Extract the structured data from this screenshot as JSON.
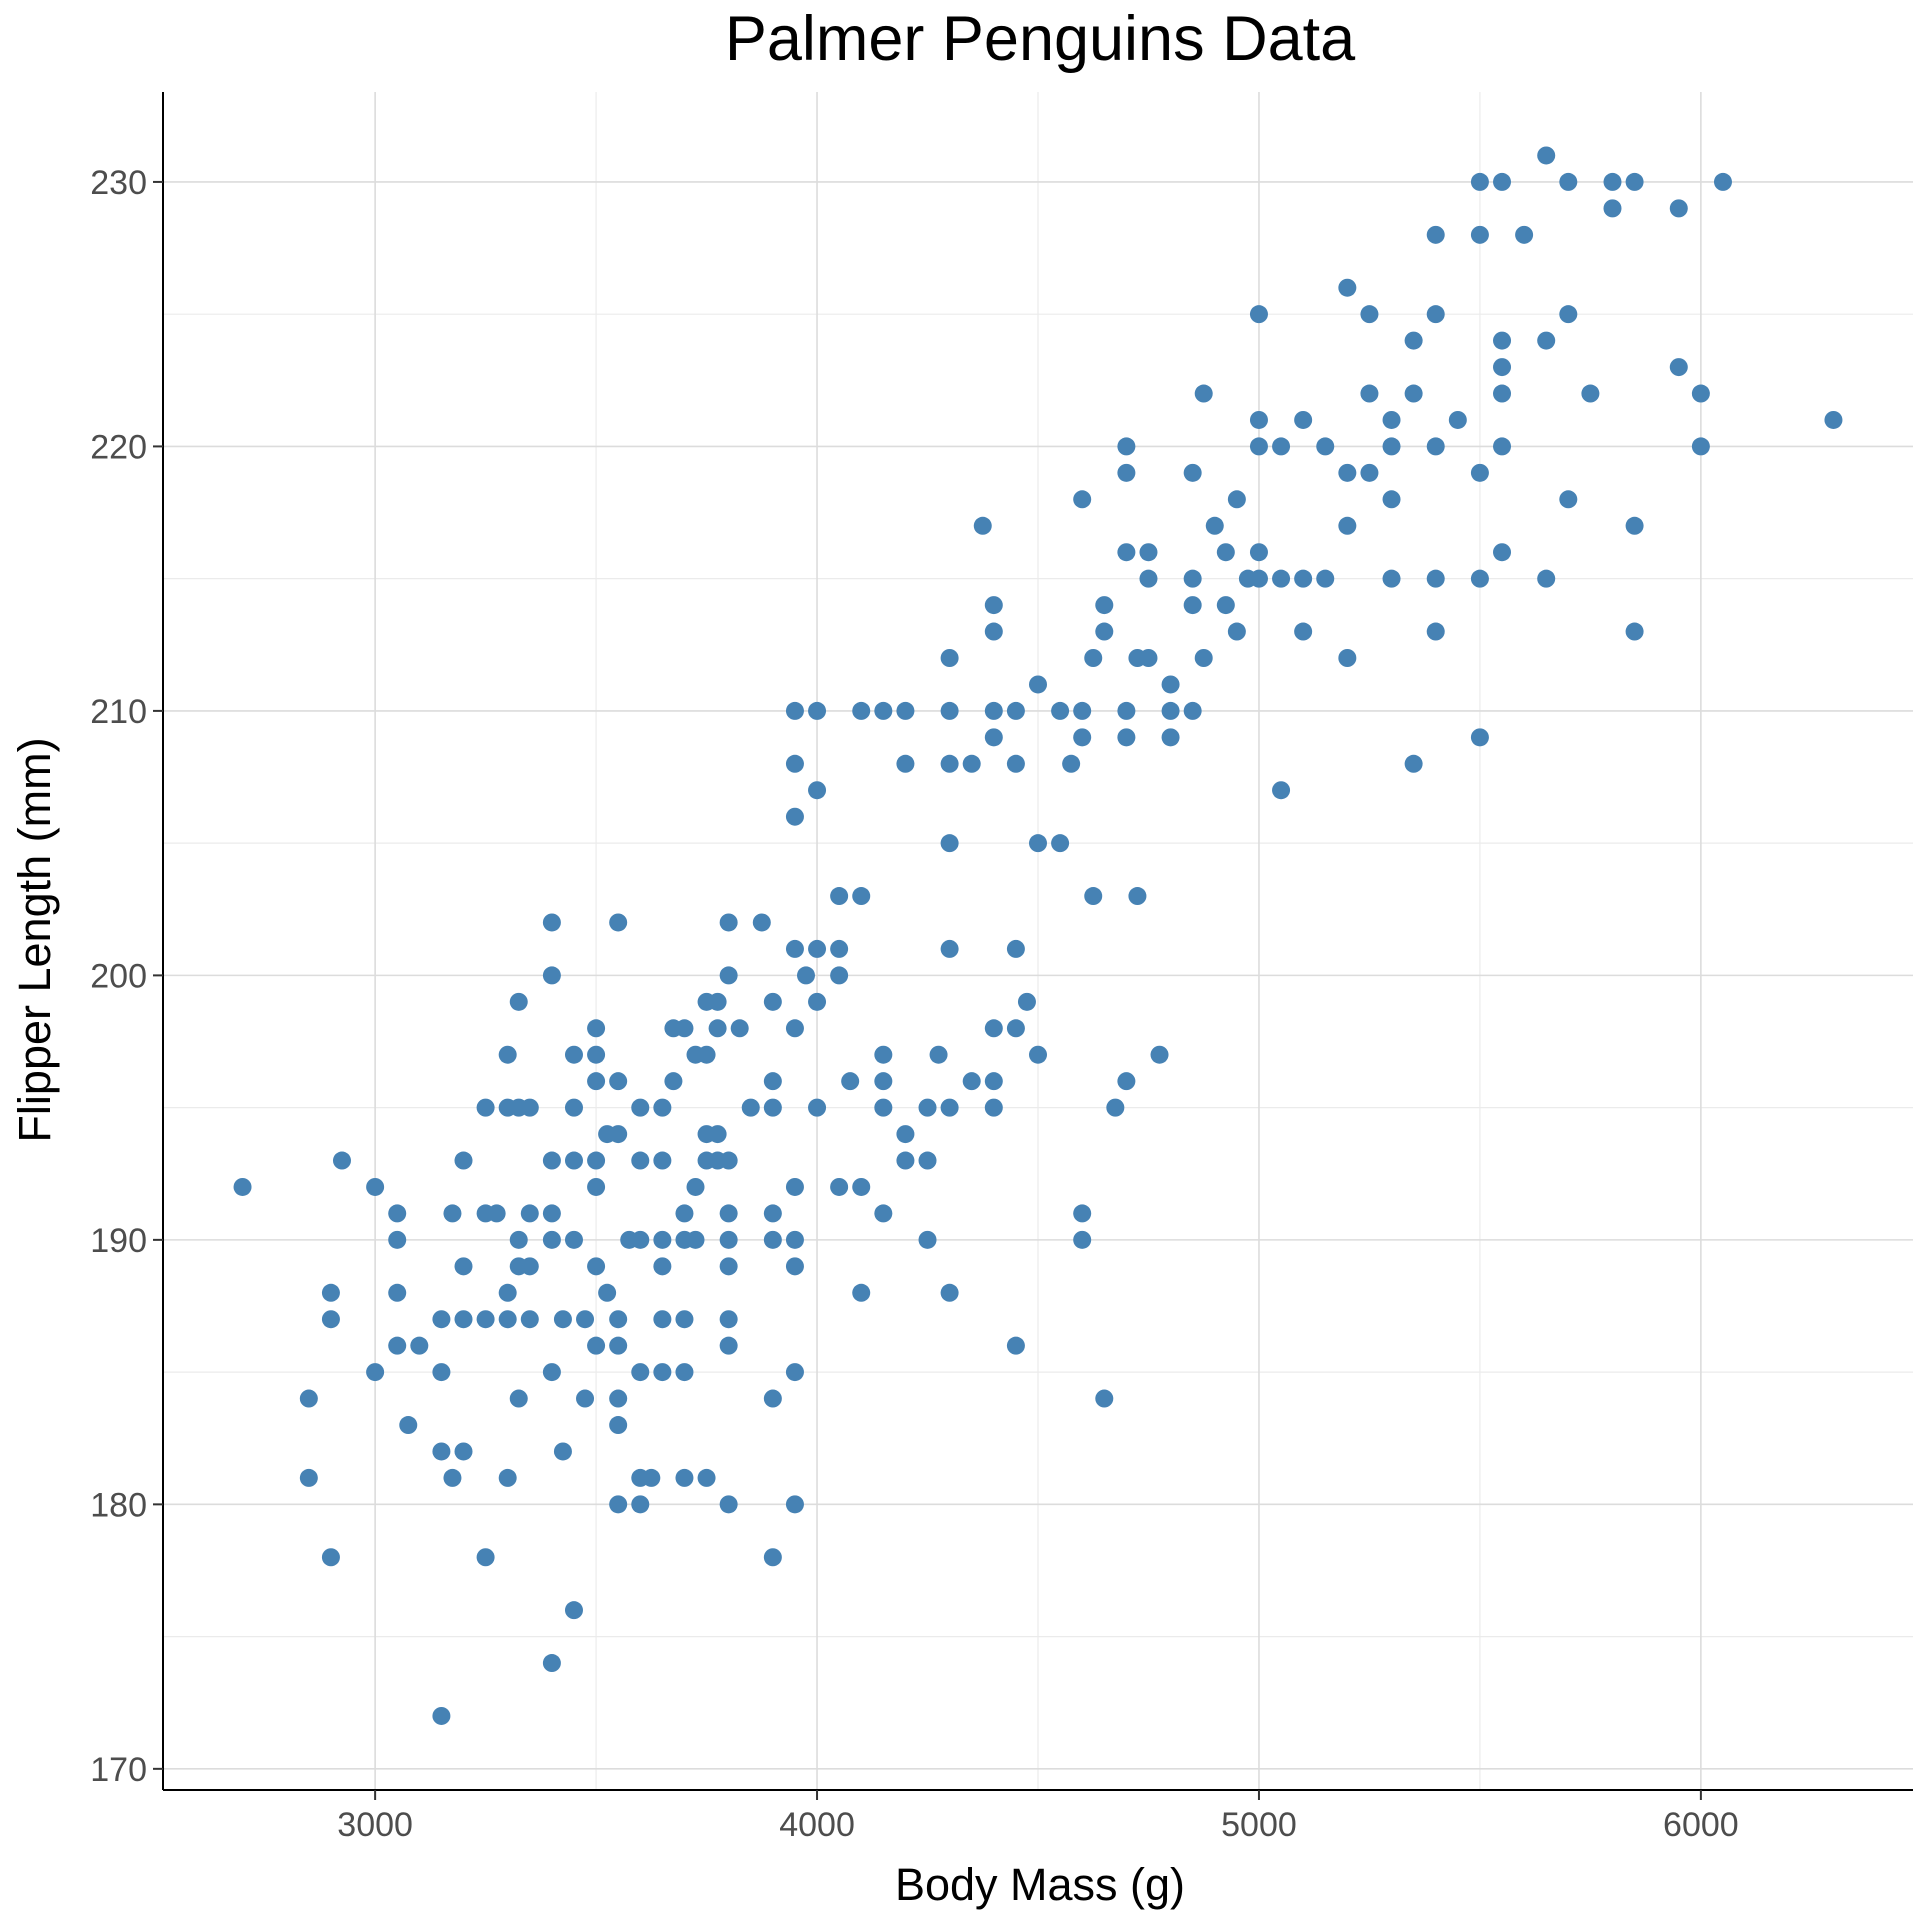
{
  "chart_data": {
    "type": "scatter",
    "title": "Palmer Penguins Data",
    "xlabel": "Body Mass (g)",
    "ylabel": "Flipper Length (mm)",
    "xlim": [
      2520,
      6480
    ],
    "ylim": [
      169.2,
      233.4
    ],
    "x_ticks": [
      3000,
      4000,
      5000,
      6000
    ],
    "y_ticks": [
      170,
      180,
      190,
      200,
      210,
      220,
      230
    ],
    "grid": true,
    "point_color": "#4682B4",
    "points": [
      [
        2700,
        192
      ],
      [
        2850,
        184
      ],
      [
        2850,
        181
      ],
      [
        2900,
        188
      ],
      [
        2900,
        187
      ],
      [
        2900,
        178
      ],
      [
        2925,
        193
      ],
      [
        3000,
        192
      ],
      [
        3000,
        185
      ],
      [
        3050,
        191
      ],
      [
        3050,
        190
      ],
      [
        3050,
        188
      ],
      [
        3050,
        186
      ],
      [
        3075,
        183
      ],
      [
        3100,
        186
      ],
      [
        3150,
        187
      ],
      [
        3150,
        185
      ],
      [
        3150,
        182
      ],
      [
        3150,
        172
      ],
      [
        3175,
        191
      ],
      [
        3175,
        181
      ],
      [
        3200,
        193
      ],
      [
        3200,
        189
      ],
      [
        3200,
        187
      ],
      [
        3200,
        182
      ],
      [
        3250,
        195
      ],
      [
        3250,
        191
      ],
      [
        3250,
        187
      ],
      [
        3250,
        178
      ],
      [
        3275,
        191
      ],
      [
        3300,
        197
      ],
      [
        3300,
        195
      ],
      [
        3300,
        188
      ],
      [
        3300,
        187
      ],
      [
        3300,
        181
      ],
      [
        3325,
        199
      ],
      [
        3325,
        195
      ],
      [
        3325,
        190
      ],
      [
        3325,
        189
      ],
      [
        3325,
        184
      ],
      [
        3350,
        195
      ],
      [
        3350,
        191
      ],
      [
        3350,
        189
      ],
      [
        3350,
        187
      ],
      [
        3400,
        202
      ],
      [
        3400,
        200
      ],
      [
        3400,
        193
      ],
      [
        3400,
        191
      ],
      [
        3400,
        190
      ],
      [
        3400,
        185
      ],
      [
        3400,
        174
      ],
      [
        3425,
        187
      ],
      [
        3425,
        182
      ],
      [
        3450,
        197
      ],
      [
        3450,
        195
      ],
      [
        3450,
        193
      ],
      [
        3450,
        190
      ],
      [
        3450,
        176
      ],
      [
        3475,
        187
      ],
      [
        3475,
        184
      ],
      [
        3500,
        198
      ],
      [
        3500,
        197
      ],
      [
        3500,
        196
      ],
      [
        3500,
        193
      ],
      [
        3500,
        192
      ],
      [
        3500,
        189
      ],
      [
        3500,
        186
      ],
      [
        3525,
        194
      ],
      [
        3525,
        188
      ],
      [
        3550,
        202
      ],
      [
        3550,
        196
      ],
      [
        3550,
        194
      ],
      [
        3550,
        187
      ],
      [
        3550,
        186
      ],
      [
        3550,
        184
      ],
      [
        3550,
        183
      ],
      [
        3550,
        180
      ],
      [
        3575,
        190
      ],
      [
        3600,
        195
      ],
      [
        3600,
        193
      ],
      [
        3600,
        190
      ],
      [
        3600,
        185
      ],
      [
        3600,
        181
      ],
      [
        3600,
        180
      ],
      [
        3625,
        181
      ],
      [
        3650,
        195
      ],
      [
        3650,
        193
      ],
      [
        3650,
        190
      ],
      [
        3650,
        189
      ],
      [
        3650,
        187
      ],
      [
        3650,
        185
      ],
      [
        3675,
        198
      ],
      [
        3675,
        196
      ],
      [
        3700,
        198
      ],
      [
        3700,
        191
      ],
      [
        3700,
        190
      ],
      [
        3700,
        187
      ],
      [
        3700,
        185
      ],
      [
        3700,
        181
      ],
      [
        3725,
        197
      ],
      [
        3725,
        192
      ],
      [
        3725,
        190
      ],
      [
        3750,
        199
      ],
      [
        3750,
        197
      ],
      [
        3750,
        194
      ],
      [
        3750,
        193
      ],
      [
        3750,
        181
      ],
      [
        3775,
        199
      ],
      [
        3775,
        198
      ],
      [
        3775,
        194
      ],
      [
        3775,
        193
      ],
      [
        3800,
        202
      ],
      [
        3800,
        200
      ],
      [
        3800,
        193
      ],
      [
        3800,
        191
      ],
      [
        3800,
        190
      ],
      [
        3800,
        189
      ],
      [
        3800,
        187
      ],
      [
        3800,
        186
      ],
      [
        3800,
        180
      ],
      [
        3825,
        198
      ],
      [
        3850,
        195
      ],
      [
        3875,
        202
      ],
      [
        3900,
        199
      ],
      [
        3900,
        196
      ],
      [
        3900,
        195
      ],
      [
        3900,
        191
      ],
      [
        3900,
        190
      ],
      [
        3900,
        184
      ],
      [
        3900,
        178
      ],
      [
        3950,
        210
      ],
      [
        3950,
        208
      ],
      [
        3950,
        206
      ],
      [
        3950,
        201
      ],
      [
        3950,
        198
      ],
      [
        3950,
        192
      ],
      [
        3950,
        190
      ],
      [
        3950,
        189
      ],
      [
        3950,
        185
      ],
      [
        3950,
        180
      ],
      [
        3975,
        200
      ],
      [
        4000,
        210
      ],
      [
        4000,
        207
      ],
      [
        4000,
        201
      ],
      [
        4000,
        199
      ],
      [
        4000,
        195
      ],
      [
        4050,
        203
      ],
      [
        4050,
        201
      ],
      [
        4050,
        200
      ],
      [
        4050,
        192
      ],
      [
        4075,
        196
      ],
      [
        4100,
        210
      ],
      [
        4100,
        203
      ],
      [
        4100,
        192
      ],
      [
        4100,
        188
      ],
      [
        4150,
        210
      ],
      [
        4150,
        197
      ],
      [
        4150,
        196
      ],
      [
        4150,
        195
      ],
      [
        4150,
        191
      ],
      [
        4200,
        210
      ],
      [
        4200,
        208
      ],
      [
        4200,
        194
      ],
      [
        4200,
        193
      ],
      [
        4250,
        195
      ],
      [
        4250,
        193
      ],
      [
        4250,
        190
      ],
      [
        4275,
        197
      ],
      [
        4300,
        212
      ],
      [
        4300,
        210
      ],
      [
        4300,
        208
      ],
      [
        4300,
        205
      ],
      [
        4300,
        201
      ],
      [
        4300,
        195
      ],
      [
        4300,
        188
      ],
      [
        4350,
        208
      ],
      [
        4350,
        196
      ],
      [
        4375,
        217
      ],
      [
        4400,
        214
      ],
      [
        4400,
        213
      ],
      [
        4400,
        210
      ],
      [
        4400,
        209
      ],
      [
        4400,
        198
      ],
      [
        4400,
        196
      ],
      [
        4400,
        195
      ],
      [
        4450,
        210
      ],
      [
        4450,
        208
      ],
      [
        4450,
        201
      ],
      [
        4450,
        198
      ],
      [
        4450,
        186
      ],
      [
        4475,
        199
      ],
      [
        4500,
        211
      ],
      [
        4500,
        205
      ],
      [
        4500,
        197
      ],
      [
        4550,
        210
      ],
      [
        4550,
        205
      ],
      [
        4575,
        208
      ],
      [
        4600,
        218
      ],
      [
        4600,
        210
      ],
      [
        4600,
        209
      ],
      [
        4600,
        191
      ],
      [
        4600,
        190
      ],
      [
        4625,
        212
      ],
      [
        4625,
        203
      ],
      [
        4650,
        214
      ],
      [
        4650,
        213
      ],
      [
        4650,
        184
      ],
      [
        4675,
        195
      ],
      [
        4700,
        220
      ],
      [
        4700,
        219
      ],
      [
        4700,
        216
      ],
      [
        4700,
        210
      ],
      [
        4700,
        209
      ],
      [
        4700,
        196
      ],
      [
        4725,
        212
      ],
      [
        4725,
        203
      ],
      [
        4750,
        216
      ],
      [
        4750,
        215
      ],
      [
        4750,
        212
      ],
      [
        4775,
        197
      ],
      [
        4800,
        211
      ],
      [
        4800,
        210
      ],
      [
        4800,
        209
      ],
      [
        4850,
        219
      ],
      [
        4850,
        215
      ],
      [
        4850,
        214
      ],
      [
        4850,
        210
      ],
      [
        4875,
        222
      ],
      [
        4875,
        212
      ],
      [
        4900,
        217
      ],
      [
        4925,
        216
      ],
      [
        4925,
        214
      ],
      [
        4950,
        218
      ],
      [
        4950,
        213
      ],
      [
        4975,
        215
      ],
      [
        5000,
        225
      ],
      [
        5000,
        221
      ],
      [
        5000,
        220
      ],
      [
        5000,
        216
      ],
      [
        5000,
        215
      ],
      [
        5050,
        220
      ],
      [
        5050,
        215
      ],
      [
        5050,
        207
      ],
      [
        5100,
        221
      ],
      [
        5100,
        215
      ],
      [
        5100,
        213
      ],
      [
        5150,
        220
      ],
      [
        5150,
        215
      ],
      [
        5200,
        226
      ],
      [
        5200,
        219
      ],
      [
        5200,
        217
      ],
      [
        5200,
        212
      ],
      [
        5250,
        225
      ],
      [
        5250,
        222
      ],
      [
        5250,
        219
      ],
      [
        5300,
        221
      ],
      [
        5300,
        220
      ],
      [
        5300,
        218
      ],
      [
        5300,
        215
      ],
      [
        5350,
        224
      ],
      [
        5350,
        222
      ],
      [
        5350,
        208
      ],
      [
        5400,
        228
      ],
      [
        5400,
        225
      ],
      [
        5400,
        220
      ],
      [
        5400,
        215
      ],
      [
        5400,
        213
      ],
      [
        5450,
        221
      ],
      [
        5500,
        230
      ],
      [
        5500,
        228
      ],
      [
        5500,
        219
      ],
      [
        5500,
        215
      ],
      [
        5500,
        209
      ],
      [
        5550,
        230
      ],
      [
        5550,
        224
      ],
      [
        5550,
        223
      ],
      [
        5550,
        222
      ],
      [
        5550,
        220
      ],
      [
        5550,
        216
      ],
      [
        5600,
        228
      ],
      [
        5650,
        231
      ],
      [
        5650,
        224
      ],
      [
        5650,
        215
      ],
      [
        5700,
        230
      ],
      [
        5700,
        225
      ],
      [
        5700,
        218
      ],
      [
        5750,
        222
      ],
      [
        5800,
        230
      ],
      [
        5800,
        229
      ],
      [
        5850,
        230
      ],
      [
        5850,
        217
      ],
      [
        5850,
        213
      ],
      [
        5950,
        229
      ],
      [
        5950,
        223
      ],
      [
        6000,
        222
      ],
      [
        6000,
        220
      ],
      [
        6050,
        230
      ],
      [
        6300,
        221
      ]
    ]
  }
}
